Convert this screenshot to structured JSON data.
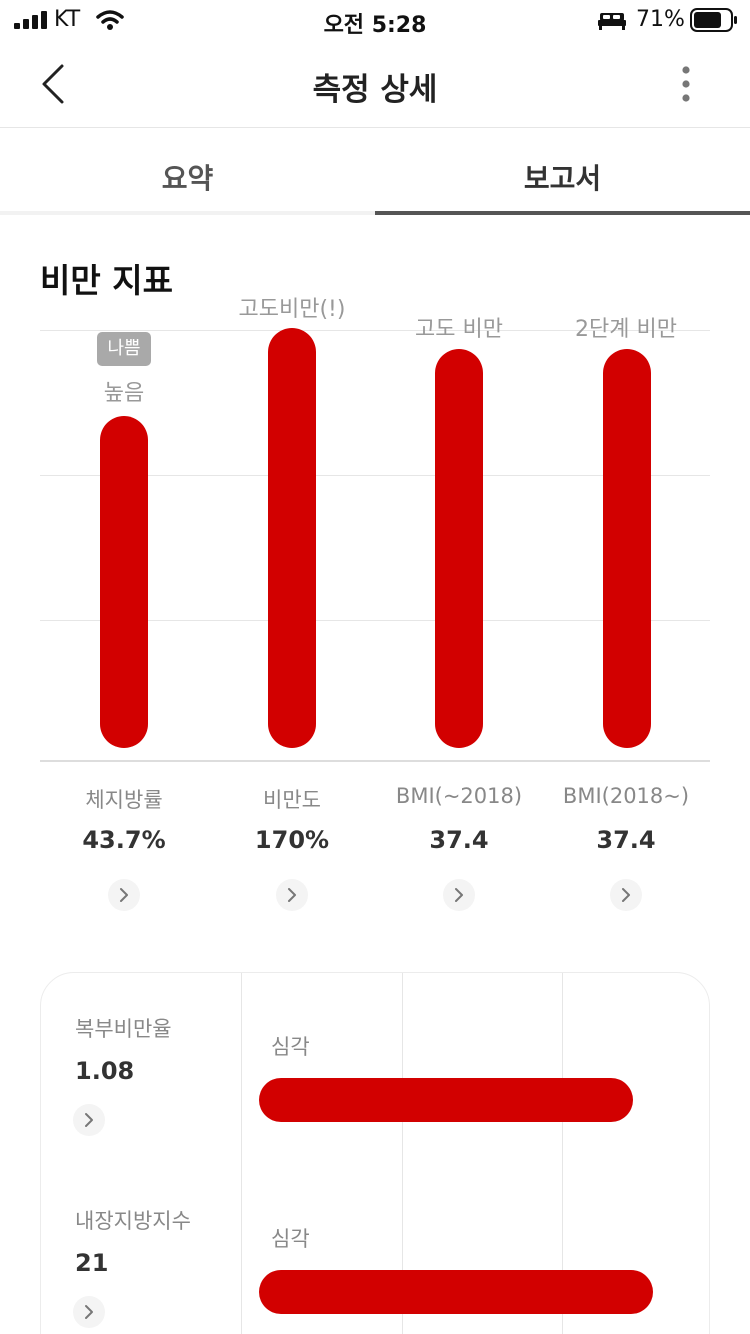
{
  "status_bar": {
    "carrier": "KT",
    "time": "오전 5:28",
    "battery": "71%"
  },
  "header": {
    "title": "측정 상세",
    "back_icon": "chevron-left-icon",
    "more_icon": "more-vertical-icon"
  },
  "tabs": [
    {
      "label": "요약",
      "selected": false
    },
    {
      "label": "보고서",
      "selected": true
    }
  ],
  "section": {
    "title": "비만 지표"
  },
  "chart_data": {
    "type": "bar",
    "categories": [
      "체지방률",
      "비만도",
      "BMI(~2018)",
      "BMI(2018~)"
    ],
    "values": [
      "43.7%",
      "170%",
      "37.4",
      "37.4"
    ],
    "levels": [
      "높음",
      "고도비만(!)",
      "고도 비만",
      "2단계 비만"
    ],
    "badge": "나쁨",
    "bar_fill": [
      0.79,
      1.0,
      0.95,
      0.95
    ],
    "bar_color": "#d20000"
  },
  "metrics": [
    {
      "label": "복부비만율",
      "value": "1.08",
      "level": "심각",
      "fill": 0.56
    },
    {
      "label": "내장지방지수",
      "value": "21",
      "level": "심각",
      "fill": 0.59
    }
  ],
  "colors": {
    "accent": "#d20000",
    "badge": "#a9a9a9"
  }
}
